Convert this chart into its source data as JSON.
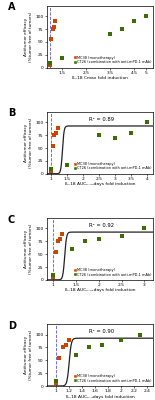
{
  "panel_A": {
    "label": "A",
    "mc38_x": [
      1.0,
      1.05,
      1.1,
      1.15,
      1.2
    ],
    "mc38_y": [
      5,
      55,
      75,
      80,
      90
    ],
    "ct26_x": [
      1.0,
      1.5,
      3.5,
      4.0,
      4.5,
      5.0
    ],
    "ct26_y": [
      10,
      18,
      65,
      75,
      90,
      100
    ],
    "xlabel": "IL-18 Cmax fold induction",
    "ylabel": "Antitumor efficacy\n(%tumor free of tumors)",
    "xticks": [
      1.5,
      2.5,
      3.5,
      4.5,
      5.0
    ],
    "xtick_labels": [
      "1.5",
      "2.5",
      "3.5",
      "4.5",
      "5"
    ],
    "ylim": [
      0,
      120
    ],
    "xlim": [
      0.85,
      5.3
    ],
    "has_sigmoid": false
  },
  "panel_B": {
    "label": "B",
    "r2": "R² = 0.89",
    "mc38_x": [
      1.0,
      1.05,
      1.1,
      1.15,
      1.2
    ],
    "mc38_y": [
      5,
      55,
      75,
      80,
      90
    ],
    "ct26_x": [
      1.0,
      1.5,
      2.5,
      3.0,
      3.5,
      4.0
    ],
    "ct26_y": [
      10,
      18,
      75,
      70,
      80,
      100
    ],
    "sigmoid_x0": 1.35,
    "sigmoid_k": 40,
    "sigmoid_ymax": 93,
    "sigmoid_xmin": 0.85,
    "sigmoid_xmax": 4.2,
    "xlabel": "IL-18 AUC₀₋₁₄days fold induction",
    "ylabel": "Antitumor efficacy\n(%tumor free of tumors)",
    "xticks": [
      1.0,
      1.5,
      2.0,
      2.5,
      3.0,
      3.5,
      4.0
    ],
    "xtick_labels": [
      "1",
      "1.5",
      "2",
      "2.5",
      "3",
      "3.5",
      "4"
    ],
    "ylim": [
      0,
      120
    ],
    "xlim": [
      0.85,
      4.2
    ],
    "has_sigmoid": true
  },
  "panel_C": {
    "label": "C",
    "r2": "R² = 0.92",
    "mc38_x": [
      1.0,
      1.05,
      1.1,
      1.15,
      1.2
    ],
    "mc38_y": [
      5,
      55,
      75,
      80,
      90
    ],
    "ct26_x": [
      1.0,
      1.4,
      1.7,
      2.0,
      2.5,
      3.0
    ],
    "ct26_y": [
      10,
      60,
      75,
      80,
      85,
      100
    ],
    "sigmoid_x0": 1.25,
    "sigmoid_k": 50,
    "sigmoid_ymax": 93,
    "sigmoid_xmin": 0.85,
    "sigmoid_xmax": 3.2,
    "xlabel": "IL-18 AUC₀₋₂₁days fold induction",
    "ylabel": "Antitumor efficacy\n(%tumor free of tumors)",
    "xticks": [
      1.0,
      1.5,
      2.0,
      2.5,
      3.0
    ],
    "xtick_labels": [
      "1",
      "1.5",
      "2",
      "2.5",
      "3"
    ],
    "ylim": [
      0,
      120
    ],
    "xlim": [
      0.85,
      3.2
    ],
    "has_sigmoid": true
  },
  "panel_D": {
    "label": "D",
    "r2": "R² = 0.90",
    "mc38_x": [
      1.0,
      1.05,
      1.1,
      1.15,
      1.2
    ],
    "mc38_y": [
      5,
      55,
      75,
      80,
      90
    ],
    "ct26_x": [
      1.0,
      1.3,
      1.5,
      1.7,
      2.0,
      2.3
    ],
    "ct26_y": [
      10,
      60,
      75,
      80,
      90,
      100
    ],
    "sigmoid_x0": 1.2,
    "sigmoid_k": 60,
    "sigmoid_ymax": 93,
    "sigmoid_xmin": 0.85,
    "sigmoid_xmax": 2.5,
    "xlabel": "IL-18 AUC₀₋₃days fold induction",
    "ylabel": "Antitumor efficacy\n(%tumor free of tumors)",
    "xticks": [
      1.0,
      1.2,
      1.4,
      1.6,
      1.8,
      2.0,
      2.2,
      2.4
    ],
    "xtick_labels": [
      "1",
      "1.2",
      "1.4",
      "1.6",
      "1.8",
      "2",
      "2.2",
      "2.4"
    ],
    "ylim": [
      0,
      120
    ],
    "xlim": [
      0.85,
      2.5
    ],
    "has_sigmoid": true
  },
  "mc38_color": "#cc4400",
  "ct26_color": "#3a6e00",
  "line_color": "#222222",
  "dashed_color": "#5555dd",
  "legend_mc38": "MC38 (monotherapy)",
  "legend_ct26": "CT26 (combination with anti-mPD-1 mAb)",
  "yticks": [
    0,
    25,
    50,
    75,
    100
  ],
  "ytick_labels": [
    "0",
    "25",
    "50",
    "75",
    "100"
  ]
}
